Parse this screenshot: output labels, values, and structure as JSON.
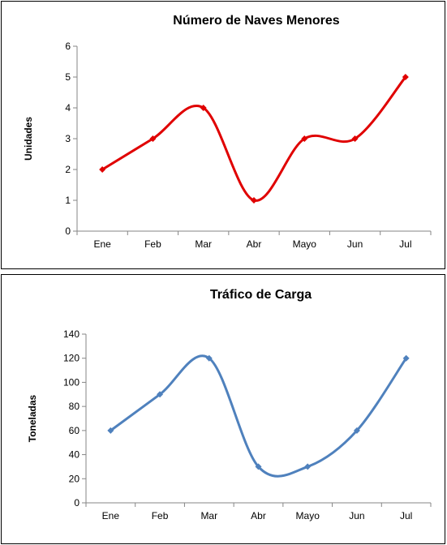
{
  "chart_data": [
    {
      "type": "line",
      "title": "Número de Naves Menores",
      "xlabel": "",
      "ylabel": "Unidades",
      "categories": [
        "Ene",
        "Feb",
        "Mar",
        "Abr",
        "Mayo",
        "Jun",
        "Jul"
      ],
      "series": [
        {
          "values": [
            2,
            3,
            4,
            1,
            3,
            3,
            5
          ],
          "color": "#E00000"
        }
      ],
      "ylim": [
        0,
        6
      ],
      "yticks": [
        "0",
        "1",
        "2",
        "3",
        "4",
        "5",
        "6"
      ],
      "smooth": true,
      "marker": "diamond",
      "grid": false,
      "legend": "none"
    },
    {
      "type": "line",
      "title": "Tráfico de Carga",
      "xlabel": "",
      "ylabel": "Toneladas",
      "categories": [
        "Ene",
        "Feb",
        "Mar",
        "Abr",
        "Mayo",
        "Jun",
        "Jul"
      ],
      "series": [
        {
          "values": [
            60,
            90,
            120,
            30,
            30,
            60,
            120
          ],
          "color": "#4F81BD"
        }
      ],
      "ylim": [
        0,
        140
      ],
      "yticks": [
        "0",
        "20",
        "40",
        "60",
        "80",
        "100",
        "120",
        "140"
      ],
      "smooth": true,
      "marker": "diamond",
      "grid": false,
      "legend": "none"
    }
  ]
}
